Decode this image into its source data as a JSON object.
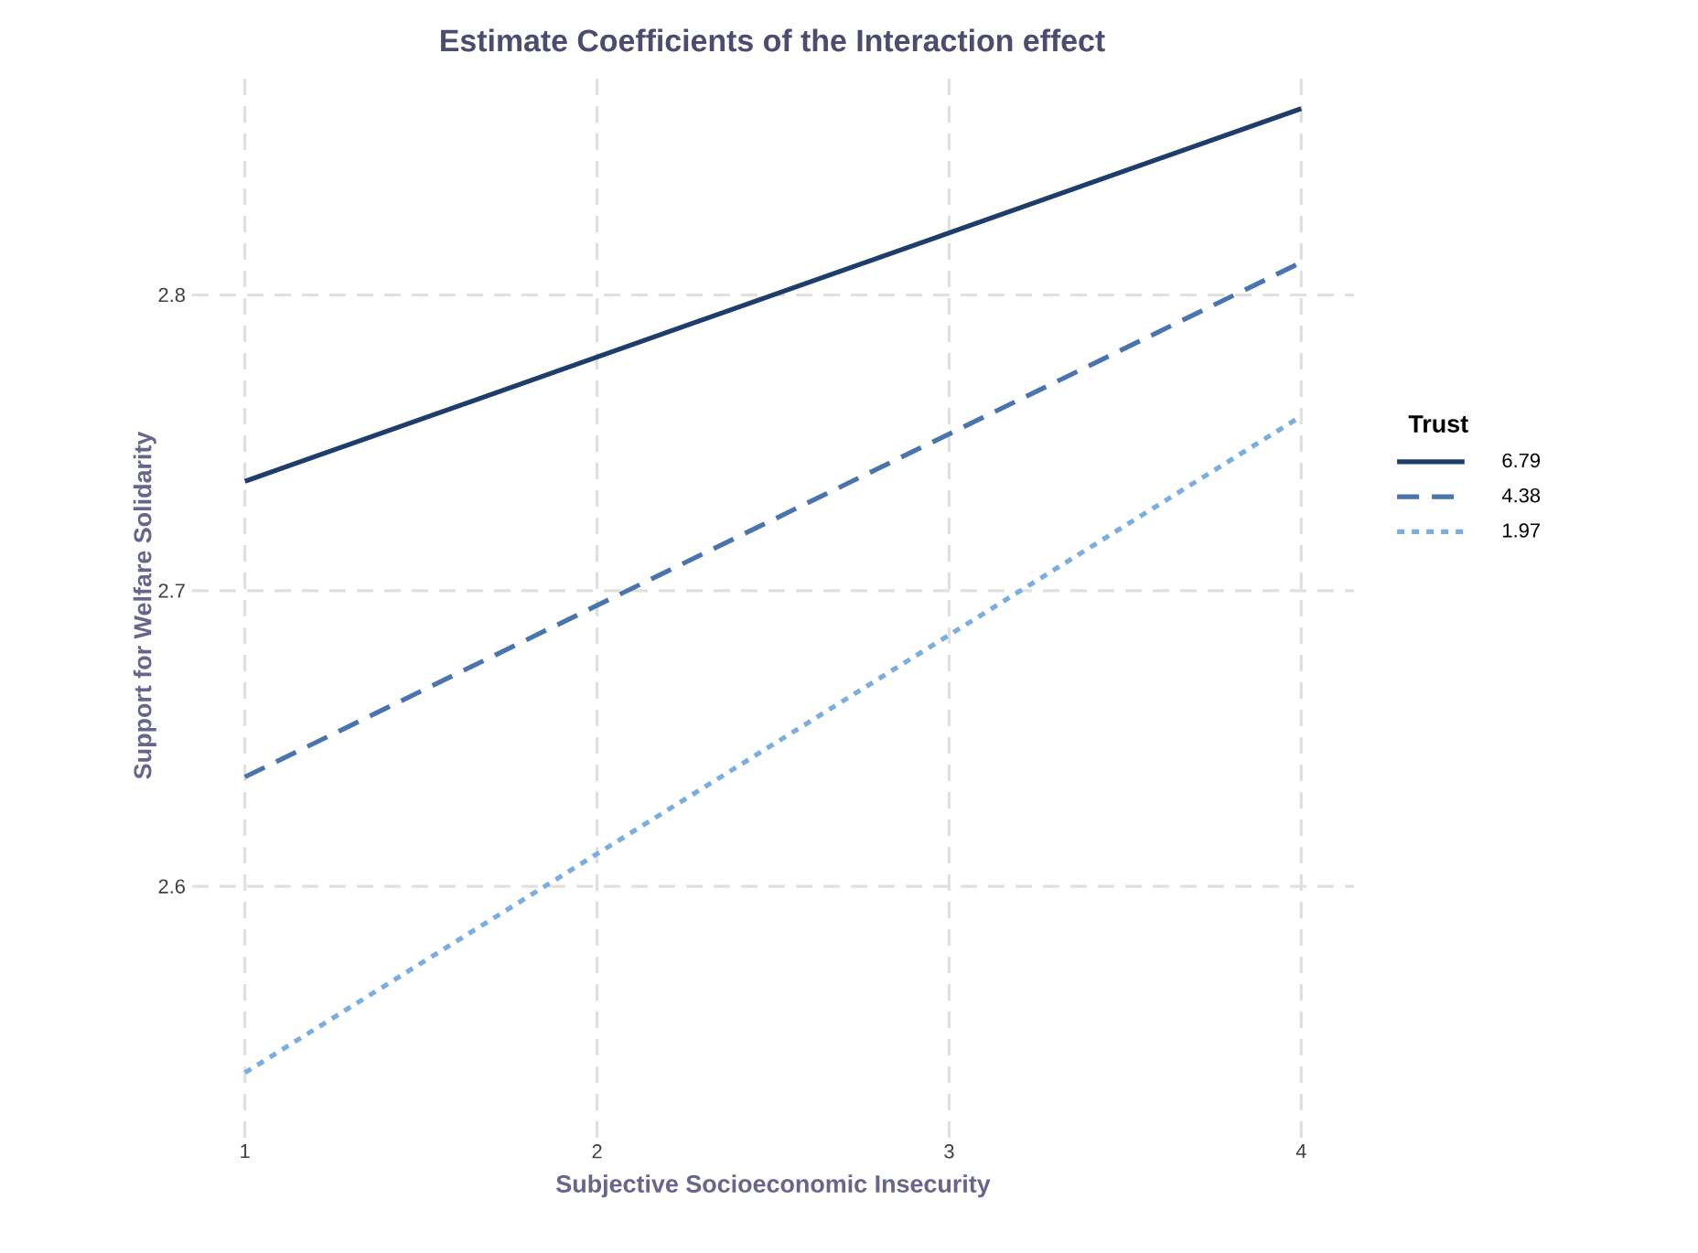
{
  "chart_data": {
    "type": "line",
    "title": "Estimate Coefficients of the Interaction effect",
    "xlabel": "Subjective Socioeconomic Insecurity",
    "ylabel": "Support for Welfare Solidarity",
    "legend_title": "Trust",
    "x": [
      1,
      4
    ],
    "series": [
      {
        "name": "6.79",
        "color": "#1d3d6b",
        "line_style": "solid",
        "values": [
          2.737,
          2.863
        ]
      },
      {
        "name": "4.38",
        "color": "#4a74ae",
        "line_style": "dashed",
        "values": [
          2.637,
          2.811
        ]
      },
      {
        "name": "1.97",
        "color": "#7aaee0",
        "line_style": "dotted",
        "values": [
          2.537,
          2.759
        ]
      }
    ],
    "xlim": [
      0.85,
      4.15
    ],
    "ylim": [
      2.515,
      2.875
    ],
    "xticks": [
      1,
      2,
      3,
      4
    ],
    "yticks": [
      2.6,
      2.7,
      2.8
    ],
    "grid": true,
    "legend": "right"
  }
}
